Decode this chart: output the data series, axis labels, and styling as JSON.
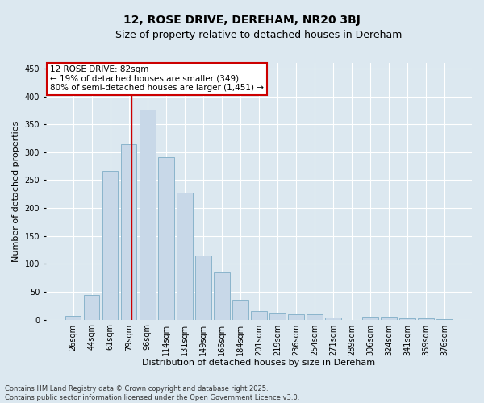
{
  "title": "12, ROSE DRIVE, DEREHAM, NR20 3BJ",
  "subtitle": "Size of property relative to detached houses in Dereham",
  "xlabel": "Distribution of detached houses by size in Dereham",
  "ylabel": "Number of detached properties",
  "categories": [
    "26sqm",
    "44sqm",
    "61sqm",
    "79sqm",
    "96sqm",
    "114sqm",
    "131sqm",
    "149sqm",
    "166sqm",
    "184sqm",
    "201sqm",
    "219sqm",
    "236sqm",
    "254sqm",
    "271sqm",
    "289sqm",
    "306sqm",
    "324sqm",
    "341sqm",
    "359sqm",
    "376sqm"
  ],
  "values": [
    6,
    44,
    267,
    314,
    376,
    291,
    227,
    115,
    85,
    35,
    16,
    12,
    10,
    10,
    4,
    0,
    5,
    5,
    2,
    2,
    1
  ],
  "bar_color": "#c8d8e8",
  "bar_edgecolor": "#8ab4cc",
  "ylim": [
    0,
    460
  ],
  "yticks": [
    0,
    50,
    100,
    150,
    200,
    250,
    300,
    350,
    400,
    450
  ],
  "red_line_x": 3.15,
  "annotation_line1": "12 ROSE DRIVE: 82sqm",
  "annotation_line2": "← 19% of detached houses are smaller (349)",
  "annotation_line3": "80% of semi-detached houses are larger (1,451) →",
  "annotation_box_color": "#ffffff",
  "annotation_box_edgecolor": "#cc0000",
  "footer_line1": "Contains HM Land Registry data © Crown copyright and database right 2025.",
  "footer_line2": "Contains public sector information licensed under the Open Government Licence v3.0.",
  "background_color": "#dce8f0",
  "plot_background_color": "#dce8f0",
  "grid_color": "#ffffff",
  "title_fontsize": 10,
  "subtitle_fontsize": 9,
  "tick_fontsize": 7,
  "ylabel_fontsize": 8,
  "xlabel_fontsize": 8,
  "annotation_fontsize": 7.5,
  "footer_fontsize": 6
}
